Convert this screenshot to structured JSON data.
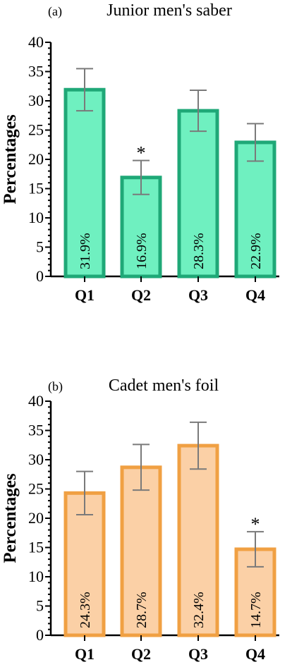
{
  "chart_data": [
    {
      "type": "bar",
      "panel": "(a)",
      "title": "Junior men's saber",
      "ylabel": "Percentages",
      "ylim": [
        0,
        40
      ],
      "yticks": [
        "0",
        "5",
        "10",
        "15",
        "20",
        "25",
        "30",
        "35",
        "40"
      ],
      "categories": [
        "Q1",
        "Q2",
        "Q3",
        "Q4"
      ],
      "values": [
        31.9,
        16.9,
        28.3,
        22.9
      ],
      "bar_labels": [
        "31.9%",
        "16.9%",
        "28.3%",
        "22.9%"
      ],
      "errors": [
        3.6,
        2.9,
        3.5,
        3.2
      ],
      "significance": [
        "",
        "*",
        "",
        ""
      ],
      "colors": {
        "fill": "#6ff0c0",
        "stroke": "#1fa877"
      }
    },
    {
      "type": "bar",
      "panel": "(b)",
      "title": "Cadet men's foil",
      "ylabel": "Percentages",
      "ylim": [
        0,
        40
      ],
      "yticks": [
        "0",
        "5",
        "10",
        "15",
        "20",
        "25",
        "30",
        "35",
        "40"
      ],
      "categories": [
        "Q1",
        "Q2",
        "Q3",
        "Q4"
      ],
      "values": [
        24.3,
        28.7,
        32.4,
        14.7
      ],
      "bar_labels": [
        "24.3%",
        "28.7%",
        "32.4%",
        "14.7%"
      ],
      "errors": [
        3.7,
        3.9,
        4.0,
        3.0
      ],
      "significance": [
        "",
        "",
        "",
        "*"
      ],
      "colors": {
        "fill": "#fbd0a6",
        "stroke": "#f0a043"
      }
    }
  ]
}
